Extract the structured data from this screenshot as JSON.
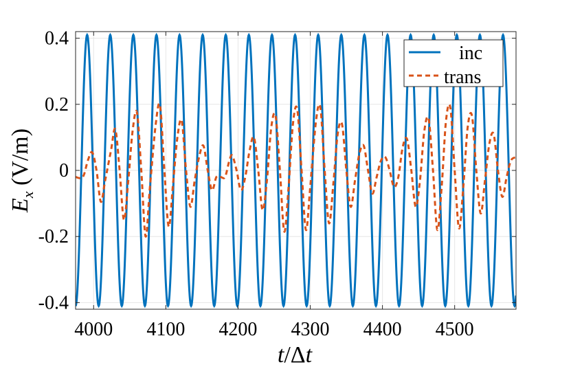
{
  "chart_data": {
    "type": "line",
    "title": "",
    "xlabel": "t/Δt",
    "ylabel": "E_x (V/m)",
    "xlim": [
      3975,
      4585
    ],
    "ylim": [
      -0.42,
      0.42
    ],
    "xticks": [
      4000,
      4100,
      4200,
      4300,
      4400,
      4500
    ],
    "xtick_labels": [
      "4000",
      "4100",
      "4200",
      "4300",
      "4400",
      "4500"
    ],
    "yticks": [
      -0.4,
      -0.2,
      0,
      0.2,
      0.4
    ],
    "ytick_labels": [
      "-0.4",
      "-0.2",
      "0",
      "0.2",
      "0.4"
    ],
    "grid": true,
    "legend": "top-right",
    "series": [
      {
        "name": "inc",
        "color": "#0072BD",
        "style": "solid",
        "amplitude": 0.41,
        "period": 32,
        "peaks_t": [
          3991,
          4023,
          4055,
          4087,
          4119,
          4151,
          4183,
          4215,
          4247,
          4279,
          4311,
          4343,
          4375,
          4407,
          4439,
          4471,
          4503,
          4535,
          4567
        ]
      },
      {
        "name": "trans",
        "color": "#D95319",
        "style": "dashed",
        "points": [
          [
            3975,
            -0.02
          ],
          [
            3985,
            -0.02
          ],
          [
            3992,
            0.03
          ],
          [
            3998,
            0.055
          ],
          [
            4004,
            0.0
          ],
          [
            4010,
            -0.095
          ],
          [
            4016,
            -0.03
          ],
          [
            4024,
            0.06
          ],
          [
            4030,
            0.125
          ],
          [
            4036,
            0.0
          ],
          [
            4042,
            -0.15
          ],
          [
            4048,
            -0.03
          ],
          [
            4054,
            0.12
          ],
          [
            4060,
            0.175
          ],
          [
            4066,
            0.0
          ],
          [
            4072,
            -0.2
          ],
          [
            4078,
            -0.05
          ],
          [
            4086,
            0.14
          ],
          [
            4092,
            0.195
          ],
          [
            4098,
            0.0
          ],
          [
            4104,
            -0.17
          ],
          [
            4110,
            -0.04
          ],
          [
            4116,
            0.1
          ],
          [
            4122,
            0.15
          ],
          [
            4128,
            0.0
          ],
          [
            4134,
            -0.11
          ],
          [
            4140,
            -0.03
          ],
          [
            4146,
            0.04
          ],
          [
            4152,
            0.075
          ],
          [
            4158,
            0.0
          ],
          [
            4164,
            -0.06
          ],
          [
            4170,
            -0.02
          ],
          [
            4176,
            -0.02
          ],
          [
            4182,
            -0.02
          ],
          [
            4188,
            0.03
          ],
          [
            4192,
            0.045
          ],
          [
            4198,
            0.0
          ],
          [
            4204,
            -0.06
          ],
          [
            4210,
            -0.02
          ],
          [
            4216,
            0.06
          ],
          [
            4222,
            0.1
          ],
          [
            4228,
            0.0
          ],
          [
            4234,
            -0.12
          ],
          [
            4240,
            -0.03
          ],
          [
            4246,
            0.13
          ],
          [
            4252,
            0.165
          ],
          [
            4258,
            0.0
          ],
          [
            4264,
            -0.185
          ],
          [
            4270,
            -0.05
          ],
          [
            4276,
            0.14
          ],
          [
            4282,
            0.185
          ],
          [
            4288,
            0.0
          ],
          [
            4294,
            -0.18
          ],
          [
            4300,
            -0.05
          ],
          [
            4308,
            0.15
          ],
          [
            4314,
            0.19
          ],
          [
            4320,
            0.0
          ],
          [
            4326,
            -0.16
          ],
          [
            4332,
            -0.04
          ],
          [
            4338,
            0.11
          ],
          [
            4344,
            0.14
          ],
          [
            4350,
            0.0
          ],
          [
            4356,
            -0.11
          ],
          [
            4362,
            -0.03
          ],
          [
            4368,
            0.05
          ],
          [
            4374,
            0.075
          ],
          [
            4380,
            0.0
          ],
          [
            4386,
            -0.07
          ],
          [
            4392,
            -0.02
          ],
          [
            4398,
            0.03
          ],
          [
            4404,
            0.04
          ],
          [
            4410,
            0.0
          ],
          [
            4416,
            -0.05
          ],
          [
            4422,
            -0.02
          ],
          [
            4428,
            0.07
          ],
          [
            4434,
            0.095
          ],
          [
            4440,
            0.0
          ],
          [
            4446,
            -0.11
          ],
          [
            4452,
            -0.03
          ],
          [
            4458,
            0.12
          ],
          [
            4464,
            0.155
          ],
          [
            4470,
            0.0
          ],
          [
            4476,
            -0.18
          ],
          [
            4482,
            -0.05
          ],
          [
            4488,
            0.15
          ],
          [
            4494,
            0.19
          ],
          [
            4500,
            0.0
          ],
          [
            4506,
            -0.175
          ],
          [
            4512,
            -0.05
          ],
          [
            4518,
            0.13
          ],
          [
            4524,
            0.165
          ],
          [
            4530,
            0.0
          ],
          [
            4536,
            -0.13
          ],
          [
            4542,
            -0.03
          ],
          [
            4548,
            0.08
          ],
          [
            4554,
            0.11
          ],
          [
            4560,
            0.0
          ],
          [
            4566,
            -0.08
          ],
          [
            4572,
            -0.02
          ],
          [
            4578,
            0.03
          ],
          [
            4585,
            0.04
          ]
        ]
      }
    ]
  }
}
